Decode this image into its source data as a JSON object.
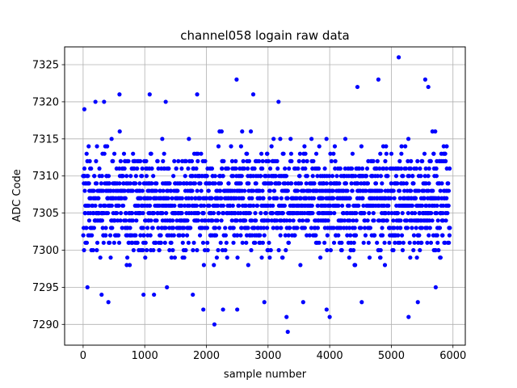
{
  "chart_data": {
    "type": "scatter",
    "title": "channel058 logain raw data",
    "xlabel": "sample number",
    "ylabel": "ADC Code",
    "xlim": [
      -300,
      6200
    ],
    "ylim": [
      7287.2,
      7327.4
    ],
    "xticks": [
      0,
      1000,
      2000,
      3000,
      4000,
      5000,
      6000
    ],
    "yticks": [
      7290,
      7295,
      7300,
      7305,
      7310,
      7315,
      7320,
      7325
    ],
    "grid": true,
    "marker_color": "#0000ff",
    "n_samples": 5950,
    "value_range": [
      7289,
      7326
    ],
    "dense_band": [
      7298,
      7316
    ],
    "outliers": [
      {
        "x": 20,
        "y": 7319
      },
      {
        "x": 70,
        "y": 7295
      },
      {
        "x": 200,
        "y": 7320
      },
      {
        "x": 340,
        "y": 7320
      },
      {
        "x": 300,
        "y": 7294
      },
      {
        "x": 410,
        "y": 7293
      },
      {
        "x": 590,
        "y": 7321
      },
      {
        "x": 980,
        "y": 7294
      },
      {
        "x": 1080,
        "y": 7321
      },
      {
        "x": 1150,
        "y": 7294
      },
      {
        "x": 1340,
        "y": 7320
      },
      {
        "x": 1360,
        "y": 7295
      },
      {
        "x": 1780,
        "y": 7294
      },
      {
        "x": 1850,
        "y": 7321
      },
      {
        "x": 1950,
        "y": 7292
      },
      {
        "x": 2130,
        "y": 7290
      },
      {
        "x": 2270,
        "y": 7292
      },
      {
        "x": 2490,
        "y": 7323
      },
      {
        "x": 2500,
        "y": 7292
      },
      {
        "x": 2760,
        "y": 7321
      },
      {
        "x": 2940,
        "y": 7293
      },
      {
        "x": 3170,
        "y": 7320
      },
      {
        "x": 3300,
        "y": 7291
      },
      {
        "x": 3320,
        "y": 7289
      },
      {
        "x": 3570,
        "y": 7293
      },
      {
        "x": 3950,
        "y": 7292
      },
      {
        "x": 4000,
        "y": 7291
      },
      {
        "x": 4450,
        "y": 7322
      },
      {
        "x": 4520,
        "y": 7293
      },
      {
        "x": 4790,
        "y": 7323
      },
      {
        "x": 5120,
        "y": 7326
      },
      {
        "x": 5280,
        "y": 7291
      },
      {
        "x": 5430,
        "y": 7293
      },
      {
        "x": 5550,
        "y": 7323
      },
      {
        "x": 5600,
        "y": 7322
      },
      {
        "x": 5720,
        "y": 7295
      }
    ]
  }
}
